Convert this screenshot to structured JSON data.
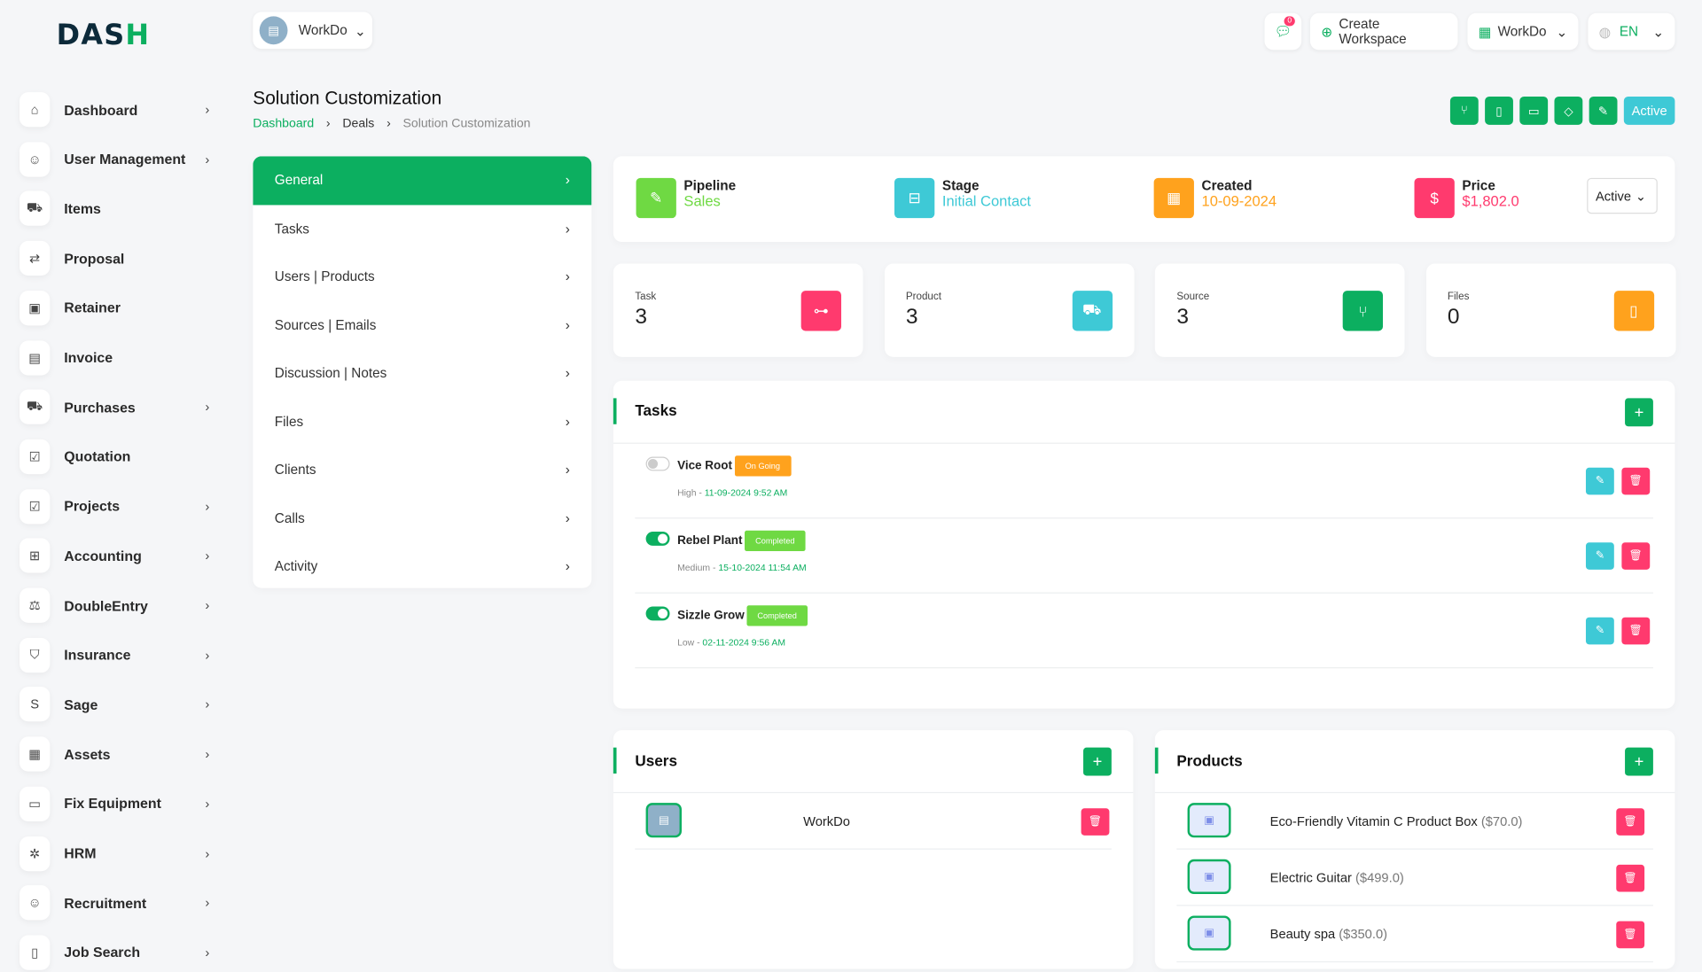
{
  "brand": {
    "logo": "DASH"
  },
  "sidebar": {
    "items": [
      {
        "label": "Dashboard",
        "icon": "home-icon",
        "chevron": true
      },
      {
        "label": "User Management",
        "icon": "users-icon",
        "chevron": true
      },
      {
        "label": "Items",
        "icon": "cart-icon",
        "chevron": false
      },
      {
        "label": "Proposal",
        "icon": "proposal-icon",
        "chevron": false
      },
      {
        "label": "Retainer",
        "icon": "retainer-icon",
        "chevron": false
      },
      {
        "label": "Invoice",
        "icon": "invoice-icon",
        "chevron": false
      },
      {
        "label": "Purchases",
        "icon": "cart-icon",
        "chevron": true
      },
      {
        "label": "Quotation",
        "icon": "quotation-icon",
        "chevron": false
      },
      {
        "label": "Projects",
        "icon": "projects-icon",
        "chevron": true
      },
      {
        "label": "Accounting",
        "icon": "grid-icon",
        "chevron": true
      },
      {
        "label": "DoubleEntry",
        "icon": "scale-icon",
        "chevron": true
      },
      {
        "label": "Insurance",
        "icon": "shield-icon",
        "chevron": true
      },
      {
        "label": "Sage",
        "icon": "sage-icon",
        "chevron": true
      },
      {
        "label": "Assets",
        "icon": "calculator-icon",
        "chevron": true
      },
      {
        "label": "Fix Equipment",
        "icon": "box-icon",
        "chevron": true
      },
      {
        "label": "HRM",
        "icon": "hrm-icon",
        "chevron": true
      },
      {
        "label": "Recruitment",
        "icon": "user-plus-icon",
        "chevron": true
      },
      {
        "label": "Job Search",
        "icon": "job-icon",
        "chevron": true
      }
    ]
  },
  "topbar": {
    "workspace": "WorkDo",
    "notifications": "0",
    "create_workspace": "Create Workspace",
    "user": "WorkDo",
    "language": "EN"
  },
  "page": {
    "title": "Solution Customization",
    "breadcrumb": [
      "Dashboard",
      "Deals",
      "Solution Customization"
    ],
    "status_button": "Active"
  },
  "menu": [
    "General",
    "Tasks",
    "Users | Products",
    "Sources | Emails",
    "Discussion | Notes",
    "Files",
    "Clients",
    "Calls",
    "Activity"
  ],
  "info": {
    "pipeline_label": "Pipeline",
    "pipeline": "Sales",
    "stage_label": "Stage",
    "stage": "Initial Contact",
    "created_label": "Created",
    "created": "10-09-2024",
    "price_label": "Price",
    "price": "$1,802.0",
    "status_select": "Active"
  },
  "stats": [
    {
      "label": "Task",
      "value": "3",
      "color": "#ff3a6e"
    },
    {
      "label": "Product",
      "value": "3",
      "color": "#3ec9d6"
    },
    {
      "label": "Source",
      "value": "3",
      "color": "#0caf60"
    },
    {
      "label": "Files",
      "value": "0",
      "color": "#ffa21d"
    }
  ],
  "tasks": {
    "title": "Tasks",
    "items": [
      {
        "name": "Vice Root",
        "status": "On Going",
        "status_color": "#ffa21d",
        "done": false,
        "priority": "High",
        "date": "11-09-2024 9:52 AM"
      },
      {
        "name": "Rebel Plant",
        "status": "Completed",
        "status_color": "#6fd943",
        "done": true,
        "priority": "Medium",
        "date": "15-10-2024 11:54 AM"
      },
      {
        "name": "Sizzle Grow",
        "status": "Completed",
        "status_color": "#6fd943",
        "done": true,
        "priority": "Low",
        "date": "02-11-2024 9:56 AM"
      }
    ]
  },
  "users": {
    "title": "Users",
    "items": [
      {
        "name": "WorkDo"
      }
    ]
  },
  "products": {
    "title": "Products",
    "items": [
      {
        "name": "Eco-Friendly Vitamin C Product Box",
        "price": "($70.0)"
      },
      {
        "name": "Electric Guitar",
        "price": "($499.0)"
      },
      {
        "name": "Beauty spa",
        "price": "($350.0)"
      }
    ]
  },
  "colors": {
    "primary": "#0caf60",
    "info": "#3ec9d6",
    "danger": "#ff3a6e",
    "warning": "#ffa21d",
    "success": "#6fd943"
  }
}
